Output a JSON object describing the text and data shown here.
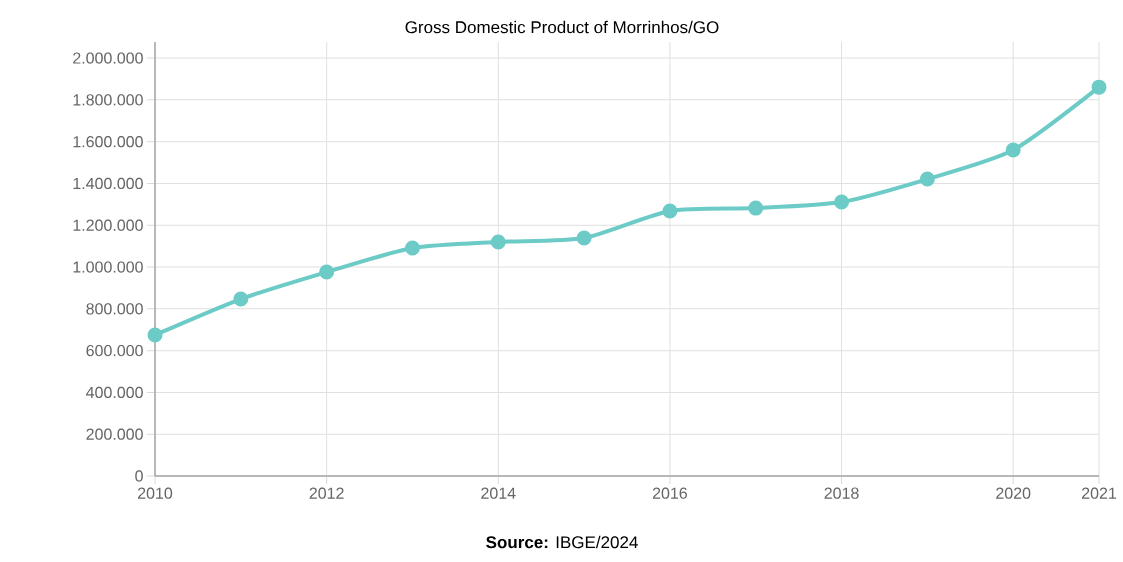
{
  "chart_data": {
    "type": "line",
    "title": "Gross Domestic Product of Morrinhos/GO",
    "annotations": [
      "**Source:** IBGE/2024"
    ],
    "x": [
      2010,
      2011,
      2012,
      2013,
      2014,
      2015,
      2016,
      2017,
      2018,
      2019,
      2020,
      2021
    ],
    "series": [
      {
        "color": "#6ccbc7",
        "values": [
          675000,
          847000,
          976000,
          1091000,
          1120000,
          1139000,
          1268000,
          1282000,
          1311000,
          1421000,
          1560000,
          1861000
        ]
      }
    ],
    "xlim": [
      2010,
      2021
    ],
    "xticks": [
      2010,
      2012,
      2014,
      2016,
      2018,
      2020,
      2021
    ],
    "ylim": [
      0,
      2077000
    ],
    "yticks": [
      {
        "value": 0,
        "label": "0"
      },
      {
        "value": 200000,
        "label": "200.000"
      },
      {
        "value": 400000,
        "label": "400.000"
      },
      {
        "value": 600000,
        "label": "600.000"
      },
      {
        "value": 800000,
        "label": "800.000"
      },
      {
        "value": 1000000,
        "label": "1.000.000"
      },
      {
        "value": 1200000,
        "label": "1.200.000"
      },
      {
        "value": 1400000,
        "label": "1.400.000"
      },
      {
        "value": 1600000,
        "label": "1.600.000"
      },
      {
        "value": 1800000,
        "label": "1.800.000"
      },
      {
        "value": 2000000,
        "label": "2.000.000"
      }
    ],
    "grid": true,
    "marker": "circle",
    "line_style": "solid"
  }
}
